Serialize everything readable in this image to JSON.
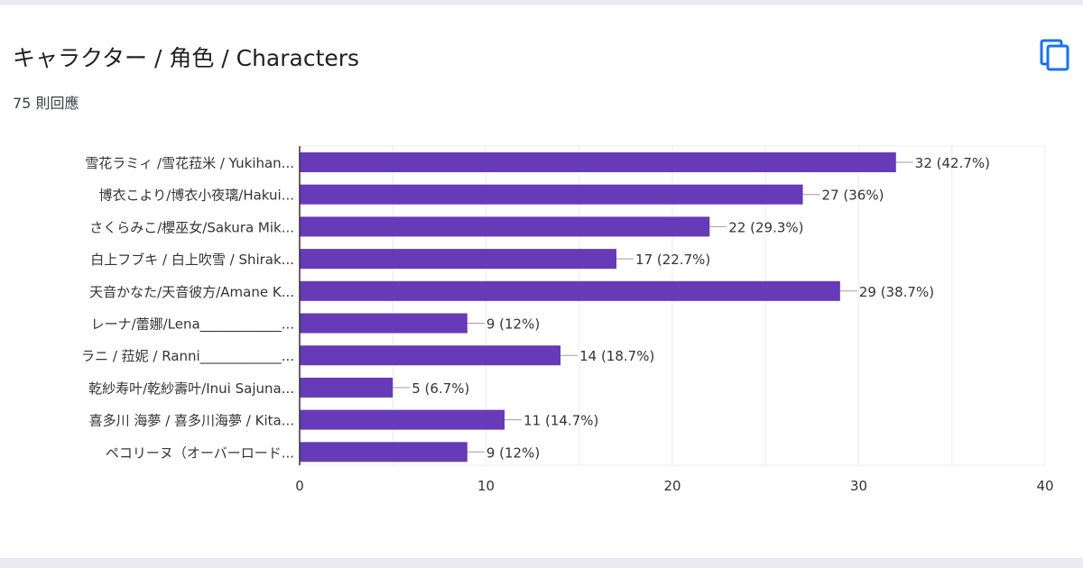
{
  "header": {
    "title": "キャラクター / 角色 / Characters",
    "response_count": "75 則回應",
    "copy_icon": "copy-icon"
  },
  "colors": {
    "bar": "#673ab7",
    "accent_icon": "#1a73e8",
    "grid": "#ececec",
    "axis": "#333333",
    "label_text": "#333333",
    "connector": "#9e9e9e"
  },
  "chart_data": {
    "type": "bar",
    "orientation": "horizontal",
    "categories": [
      "雪花ラミィ /雪花菈米 / Yukihan...",
      "博衣こより/博衣小夜璃/Hakui...",
      "さくらみこ/櫻巫女/Sakura Mik...",
      "白上フブキ / 白上吹雪 / Shirak...",
      "天音かなた/天音彼方/Amane K...",
      "レーナ/蕾娜/Lena____________...",
      "ラニ / 菈妮 / Ranni____________...",
      "乾紗寿叶/乾紗壽叶/Inui Sajuna...",
      "喜多川 海夢 / 喜多川海夢 / Kita...",
      "ペコリーヌ（オーバーロード..."
    ],
    "values": [
      32,
      27,
      22,
      17,
      29,
      9,
      14,
      5,
      11,
      9
    ],
    "data_labels": [
      "32 (42.7%)",
      "27 (36%)",
      "22 (29.3%)",
      "17 (22.7%)",
      "29 (38.7%)",
      "9 (12%)",
      "14 (18.7%)",
      "5 (6.7%)",
      "11 (14.7%)",
      "9 (12%)"
    ],
    "xlim": [
      0,
      40
    ],
    "xticks": [
      "0",
      "10",
      "20",
      "30",
      "40"
    ],
    "grid": true,
    "legend": "none"
  }
}
